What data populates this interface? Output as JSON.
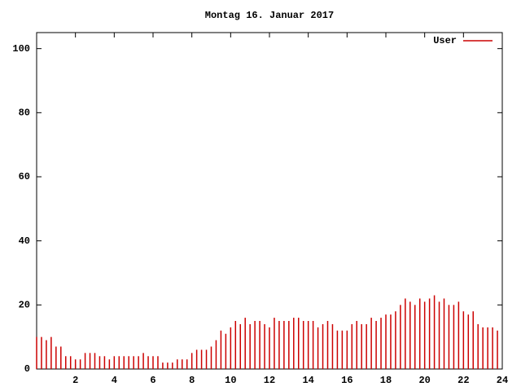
{
  "chart_data": {
    "type": "impulse",
    "title": "Montag 16. Januar 2017",
    "series": [
      {
        "name": "User",
        "color": "#cc0000",
        "x": [
          0,
          0.25,
          0.5,
          0.75,
          1,
          1.25,
          1.5,
          1.75,
          2,
          2.25,
          2.5,
          2.75,
          3,
          3.25,
          3.5,
          3.75,
          4,
          4.25,
          4.5,
          4.75,
          5,
          5.25,
          5.5,
          5.75,
          6,
          6.25,
          6.5,
          6.75,
          7,
          7.25,
          7.5,
          7.75,
          8,
          8.25,
          8.5,
          8.75,
          9,
          9.25,
          9.5,
          9.75,
          10,
          10.25,
          10.5,
          10.75,
          11,
          11.25,
          11.5,
          11.75,
          12,
          12.25,
          12.5,
          12.75,
          13,
          13.25,
          13.5,
          13.75,
          14,
          14.25,
          14.5,
          14.75,
          15,
          15.25,
          15.5,
          15.75,
          16,
          16.25,
          16.5,
          16.75,
          17,
          17.25,
          17.5,
          17.75,
          18,
          18.25,
          18.5,
          18.75,
          19,
          19.25,
          19.5,
          19.75,
          20,
          20.25,
          20.5,
          20.75,
          21,
          21.25,
          21.5,
          21.75,
          22,
          22.25,
          22.5,
          22.75,
          23,
          23.25,
          23.5,
          23.75
        ],
        "values": [
          10,
          10,
          9,
          10,
          7,
          7,
          4,
          4,
          3,
          3,
          5,
          5,
          5,
          4,
          4,
          3,
          4,
          4,
          4,
          4,
          4,
          4,
          5,
          4,
          4,
          4,
          2,
          2,
          2,
          3,
          3,
          3,
          5,
          6,
          6,
          6,
          7,
          9,
          12,
          11,
          13,
          15,
          14,
          16,
          14,
          15,
          15,
          14,
          13,
          16,
          15,
          15,
          15,
          16,
          16,
          15,
          15,
          15,
          13,
          14,
          15,
          14,
          12,
          12,
          12,
          14,
          15,
          14,
          14,
          16,
          15,
          16,
          17,
          17,
          18,
          20,
          22,
          21,
          20,
          22,
          21,
          22,
          23,
          21,
          22,
          20,
          20,
          21,
          18,
          17,
          18,
          14,
          13,
          13,
          13,
          12
        ]
      }
    ],
    "xlim": [
      0,
      24
    ],
    "xticks": [
      2,
      4,
      6,
      8,
      10,
      12,
      14,
      16,
      18,
      20,
      22,
      24
    ],
    "ylim": [
      0,
      105
    ],
    "yticks": [
      0,
      20,
      40,
      60,
      80,
      100
    ],
    "legend": "top-right",
    "grid": false
  }
}
